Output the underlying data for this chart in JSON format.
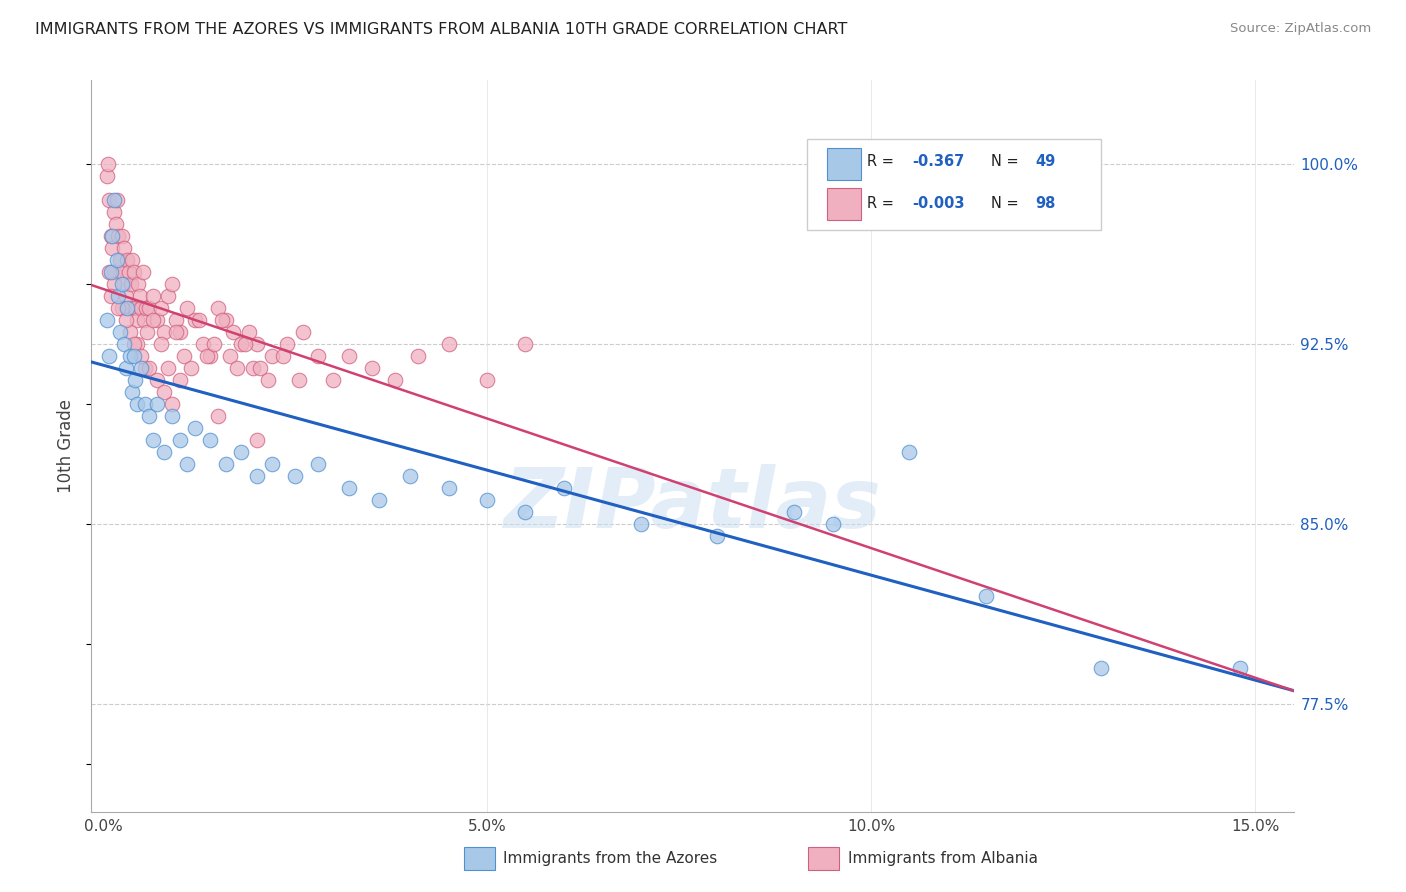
{
  "title": "IMMIGRANTS FROM THE AZORES VS IMMIGRANTS FROM ALBANIA 10TH GRADE CORRELATION CHART",
  "source": "Source: ZipAtlas.com",
  "xlabel_ticks": [
    "0.0%",
    "5.0%",
    "10.0%",
    "15.0%"
  ],
  "xlabel_tick_vals": [
    0.0,
    5.0,
    10.0,
    15.0
  ],
  "ylabel": "10th Grade",
  "ylabel_ticks": [
    "77.5%",
    "85.0%",
    "92.5%",
    "100.0%"
  ],
  "ylabel_tick_vals": [
    77.5,
    85.0,
    92.5,
    100.0
  ],
  "xlim": [
    -0.15,
    15.5
  ],
  "ylim": [
    73.0,
    103.5
  ],
  "color_blue": "#a8c8e8",
  "color_pink": "#f0b0c0",
  "color_blue_edge": "#5090d0",
  "color_pink_edge": "#d06080",
  "color_blue_line": "#2060c0",
  "color_pink_line": "#d04070",
  "watermark": "ZIPatlas",
  "azores_x": [
    0.05,
    0.08,
    0.1,
    0.12,
    0.15,
    0.18,
    0.2,
    0.22,
    0.25,
    0.28,
    0.3,
    0.32,
    0.35,
    0.38,
    0.4,
    0.42,
    0.45,
    0.5,
    0.55,
    0.6,
    0.65,
    0.7,
    0.8,
    0.9,
    1.0,
    1.1,
    1.2,
    1.4,
    1.6,
    1.8,
    2.0,
    2.2,
    2.5,
    2.8,
    3.2,
    3.6,
    4.0,
    4.5,
    5.0,
    5.5,
    6.0,
    7.0,
    8.0,
    9.0,
    9.5,
    10.5,
    11.5,
    13.0,
    14.8
  ],
  "azores_y": [
    93.5,
    92.0,
    95.5,
    97.0,
    98.5,
    96.0,
    94.5,
    93.0,
    95.0,
    92.5,
    91.5,
    94.0,
    92.0,
    90.5,
    92.0,
    91.0,
    90.0,
    91.5,
    90.0,
    89.5,
    88.5,
    90.0,
    88.0,
    89.5,
    88.5,
    87.5,
    89.0,
    88.5,
    87.5,
    88.0,
    87.0,
    87.5,
    87.0,
    87.5,
    86.5,
    86.0,
    87.0,
    86.5,
    86.0,
    85.5,
    86.5,
    85.0,
    84.5,
    85.5,
    85.0,
    88.0,
    82.0,
    79.0,
    79.0
  ],
  "albania_x": [
    0.05,
    0.06,
    0.08,
    0.1,
    0.12,
    0.14,
    0.15,
    0.17,
    0.18,
    0.2,
    0.22,
    0.24,
    0.25,
    0.27,
    0.28,
    0.3,
    0.32,
    0.34,
    0.35,
    0.37,
    0.38,
    0.4,
    0.42,
    0.44,
    0.46,
    0.48,
    0.5,
    0.52,
    0.54,
    0.56,
    0.58,
    0.6,
    0.65,
    0.7,
    0.75,
    0.8,
    0.85,
    0.9,
    0.95,
    1.0,
    1.1,
    1.2,
    1.3,
    1.4,
    1.5,
    1.6,
    1.7,
    1.8,
    1.9,
    2.0,
    2.2,
    2.4,
    2.6,
    2.8,
    3.0,
    3.2,
    3.5,
    3.8,
    4.1,
    4.5,
    5.0,
    5.5,
    0.08,
    0.15,
    0.25,
    0.35,
    0.45,
    0.55,
    0.65,
    0.75,
    0.85,
    0.95,
    1.05,
    1.15,
    1.25,
    1.35,
    1.45,
    1.55,
    1.65,
    1.75,
    1.85,
    1.95,
    2.05,
    2.15,
    2.35,
    2.55,
    0.1,
    0.2,
    0.3,
    0.4,
    0.5,
    0.6,
    0.7,
    0.8,
    0.9,
    1.0,
    1.5,
    2.0
  ],
  "albania_y": [
    99.5,
    100.0,
    98.5,
    97.0,
    96.5,
    95.5,
    98.0,
    97.5,
    98.5,
    97.0,
    96.0,
    95.5,
    97.0,
    96.5,
    95.0,
    94.5,
    96.0,
    95.5,
    94.0,
    95.0,
    96.0,
    95.5,
    94.0,
    93.5,
    95.0,
    94.5,
    94.0,
    95.5,
    93.5,
    94.0,
    93.0,
    94.0,
    94.5,
    93.5,
    94.0,
    93.0,
    94.5,
    95.0,
    93.5,
    93.0,
    94.0,
    93.5,
    92.5,
    92.0,
    94.0,
    93.5,
    93.0,
    92.5,
    93.0,
    92.5,
    92.0,
    92.5,
    93.0,
    92.0,
    91.0,
    92.0,
    91.5,
    91.0,
    92.0,
    92.5,
    91.0,
    92.5,
    95.5,
    95.0,
    94.0,
    93.0,
    92.5,
    91.5,
    93.5,
    92.5,
    91.5,
    93.0,
    92.0,
    91.5,
    93.5,
    92.0,
    92.5,
    93.5,
    92.0,
    91.5,
    92.5,
    91.5,
    91.5,
    91.0,
    92.0,
    91.0,
    94.5,
    94.0,
    93.5,
    92.5,
    92.0,
    91.5,
    91.0,
    90.5,
    90.0,
    91.0,
    89.5,
    88.5
  ]
}
